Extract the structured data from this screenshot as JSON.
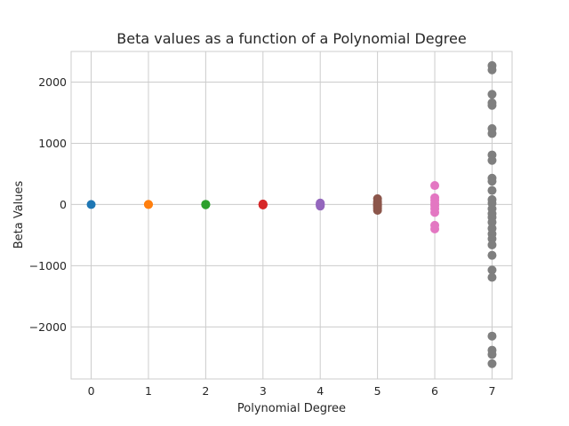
{
  "chart_data": {
    "type": "scatter",
    "title": "Beta values as a function of a Polynomial Degree",
    "xlabel": "Polynomial Degree",
    "ylabel": "Beta Values",
    "xlim": [
      -0.35,
      7.35
    ],
    "ylim": [
      -2850,
      2500
    ],
    "xticks": [
      0,
      1,
      2,
      3,
      4,
      5,
      6,
      7
    ],
    "yticks": [
      -2000,
      -1000,
      0,
      1000,
      2000
    ],
    "ytick_labels": [
      "−2000",
      "−1000",
      "0",
      "1000",
      "2000"
    ],
    "grid": true,
    "series": [
      {
        "x": 0,
        "color": "#1f77b4",
        "values": [
          0
        ]
      },
      {
        "x": 1,
        "color": "#ff7f0e",
        "values": [
          0,
          2
        ]
      },
      {
        "x": 2,
        "color": "#2ca02c",
        "values": [
          -4,
          0,
          3
        ]
      },
      {
        "x": 3,
        "color": "#d62728",
        "values": [
          -8,
          -3,
          0,
          4,
          8
        ]
      },
      {
        "x": 4,
        "color": "#9467bd",
        "values": [
          -25,
          -12,
          -4,
          5,
          14,
          24
        ]
      },
      {
        "x": 5,
        "color": "#8c564b",
        "values": [
          -95,
          -60,
          -30,
          -10,
          0,
          20,
          50,
          95
        ]
      },
      {
        "x": 6,
        "color": "#e377c2",
        "values": [
          -400,
          -340,
          -130,
          -70,
          -20,
          20,
          70,
          110,
          310
        ]
      },
      {
        "x": 7,
        "color": "#7f7f7f",
        "values": [
          2270,
          2200,
          1800,
          1660,
          1620,
          1240,
          1160,
          810,
          720,
          430,
          380,
          230,
          80,
          20,
          -70,
          -150,
          -210,
          -290,
          -390,
          -480,
          -560,
          -660,
          -830,
          -1070,
          -1190,
          -2150,
          -2380,
          -2450,
          -2600
        ]
      }
    ]
  }
}
